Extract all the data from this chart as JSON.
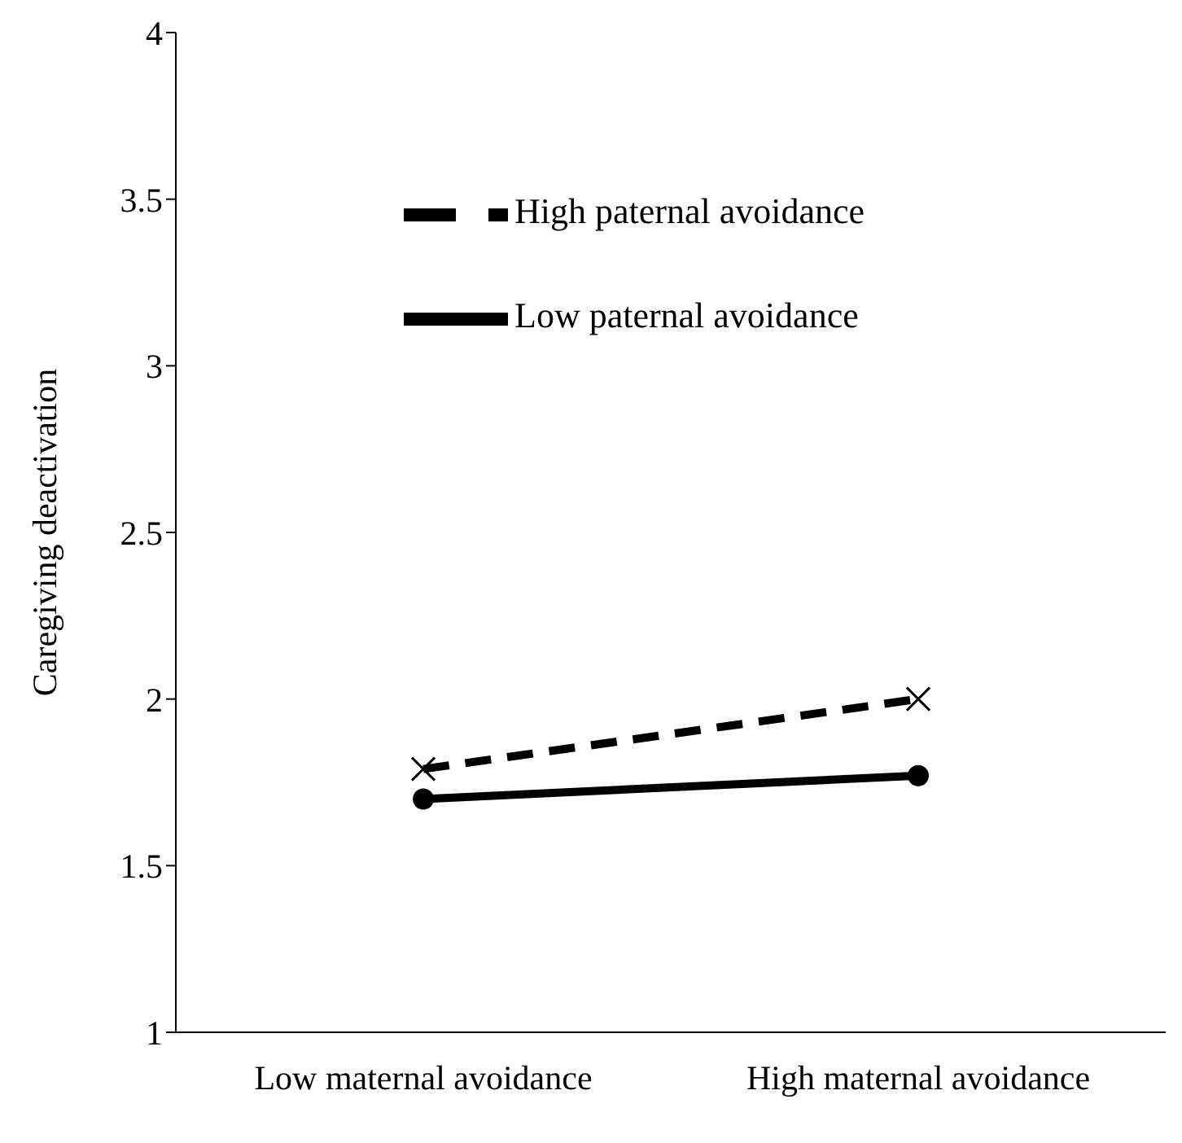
{
  "chart_data": {
    "type": "line",
    "ylabel": "Caregiving deactivation",
    "categories": [
      "Low maternal avoidance",
      "High maternal avoidance"
    ],
    "series": [
      {
        "name": "Low paternal avoidance",
        "color": "#000000",
        "values": [
          1.7,
          1.77
        ],
        "marker": "circle",
        "line_style": "solid"
      },
      {
        "name": "High paternal avoidance",
        "color": "#000000",
        "values": [
          1.79,
          2.0
        ],
        "marker": "cross",
        "line_style": "dashed"
      }
    ],
    "ylim": [
      1,
      4
    ],
    "yticks": [
      1,
      1.5,
      2,
      2.5,
      3,
      3.5,
      4
    ],
    "grid": false,
    "legend": "top"
  }
}
